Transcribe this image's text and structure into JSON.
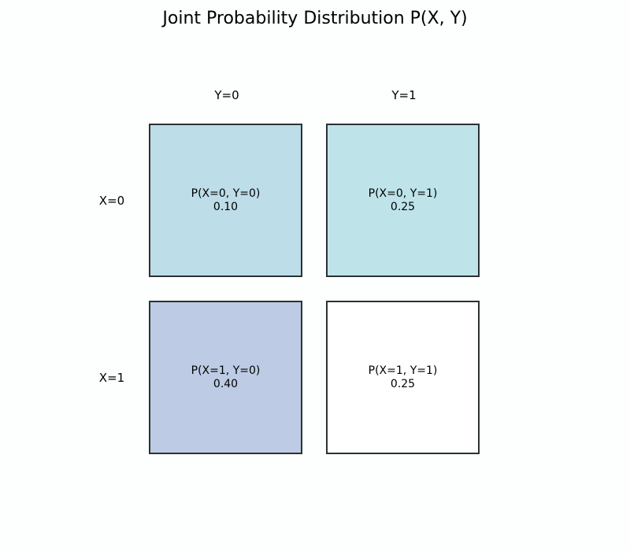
{
  "title": "Joint Probability Distribution P(X, Y)",
  "columns": [
    "Y=0",
    "Y=1"
  ],
  "rows": [
    "X=0",
    "X=1"
  ],
  "cells": [
    [
      {
        "label": "P(X=0, Y=0)",
        "value": "0.10",
        "color": "#bddde8"
      },
      {
        "label": "P(X=0, Y=1)",
        "value": "0.25",
        "color": "#bee4e9"
      }
    ],
    [
      {
        "label": "P(X=1, Y=0)",
        "value": "0.40",
        "color": "#bdcce4"
      },
      {
        "label": "P(X=1, Y=1)",
        "value": "0.25",
        "color": "#ffffff"
      }
    ]
  ]
}
